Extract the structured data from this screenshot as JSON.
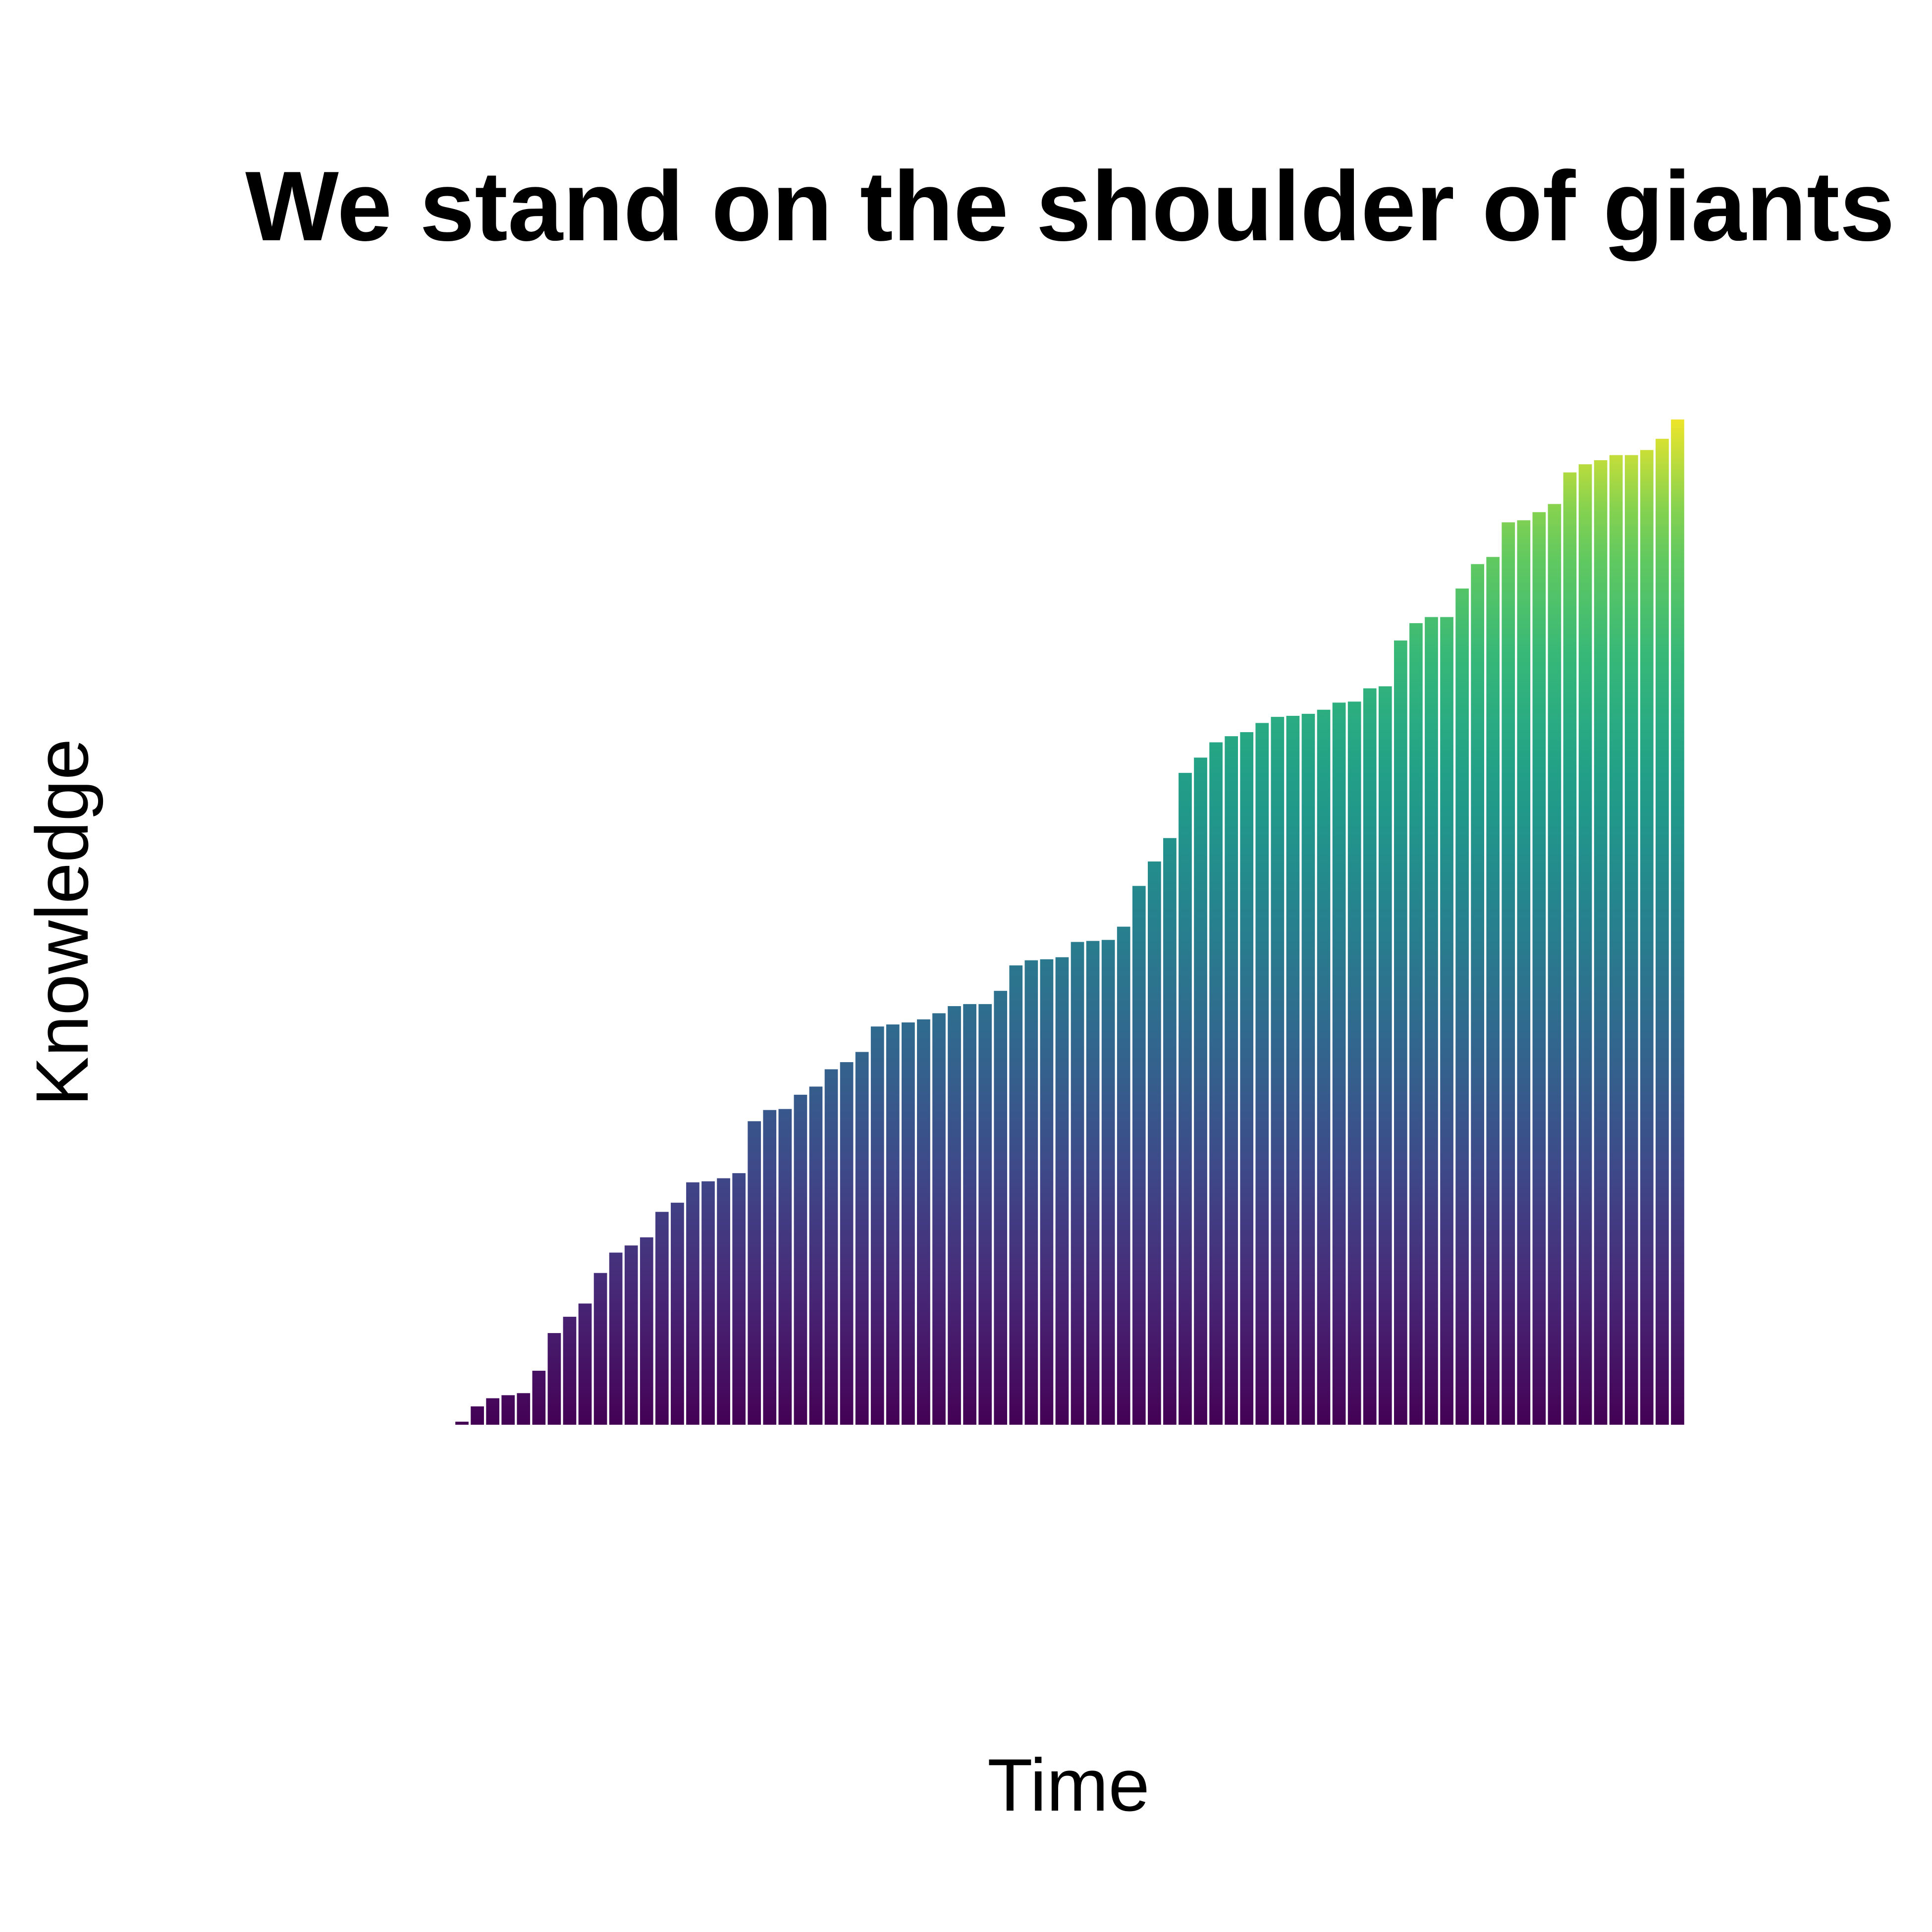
{
  "chart_data": {
    "type": "bar",
    "title": "We stand on the shoulder of giants",
    "xlabel": "Time",
    "ylabel": "Knowledge",
    "xticks": "none",
    "yticks": "none",
    "grid": false,
    "legend": "none",
    "color_scale": "viridis",
    "colors": {
      "low": "#440154",
      "mid": "#21908c",
      "high": "#fde725"
    },
    "ylim": [
      0,
      100
    ],
    "x": [
      1,
      2,
      3,
      4,
      5,
      6,
      7,
      8,
      9,
      10,
      11,
      12,
      13,
      14,
      15,
      16,
      17,
      18,
      19,
      20,
      21,
      22,
      23,
      24,
      25,
      26,
      27,
      28,
      29,
      30,
      31,
      32,
      33,
      34,
      35,
      36,
      37,
      38,
      39,
      40,
      41,
      42,
      43,
      44,
      45,
      46,
      47,
      48,
      49,
      50,
      51,
      52,
      53,
      54,
      55,
      56,
      57,
      58,
      59,
      60,
      61,
      62,
      63,
      64,
      65,
      66,
      67,
      68,
      69,
      70,
      71,
      72,
      73,
      74,
      75,
      76,
      77,
      78,
      79,
      80
    ],
    "values": [
      0.3,
      1.8,
      2.6,
      2.9,
      3.1,
      5.3,
      9.0,
      10.6,
      11.9,
      14.9,
      16.9,
      17.6,
      18.4,
      20.9,
      21.8,
      23.8,
      23.9,
      24.2,
      24.7,
      29.8,
      30.9,
      31.0,
      32.4,
      33.2,
      34.9,
      35.6,
      36.6,
      39.1,
      39.3,
      39.5,
      39.8,
      40.4,
      41.1,
      41.3,
      41.3,
      42.6,
      45.1,
      45.6,
      45.7,
      45.9,
      47.4,
      47.5,
      47.6,
      48.9,
      52.9,
      55.3,
      57.6,
      64.0,
      65.5,
      67.0,
      67.6,
      68.0,
      68.9,
      69.5,
      69.6,
      69.8,
      70.2,
      70.9,
      71.0,
      72.3,
      72.5,
      77.0,
      78.7,
      79.3,
      79.3,
      82.1,
      84.5,
      85.2,
      88.6,
      88.8,
      89.6,
      90.4,
      93.5,
      94.3,
      94.7,
      95.2,
      95.2,
      95.7,
      96.8,
      98.7
    ]
  }
}
